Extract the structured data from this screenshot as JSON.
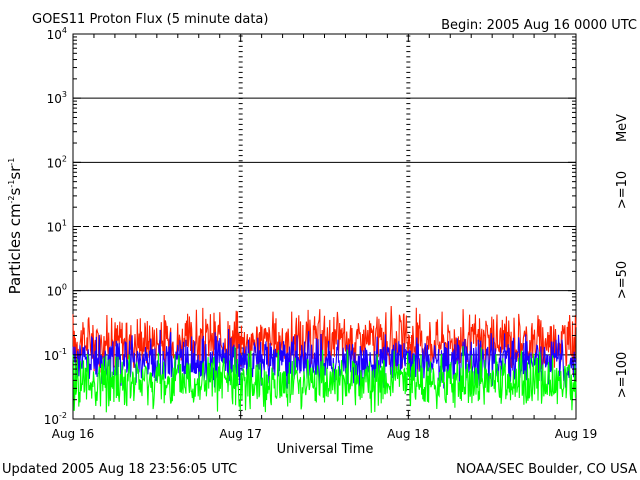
{
  "header": {
    "title": "GOES11 Proton Flux (5 minute data)",
    "begin": "Begin: 2005 Aug 16 0000 UTC"
  },
  "footer": {
    "updated": "Updated 2005 Aug 18 23:56:05 UTC",
    "source": "NOAA/SEC Boulder, CO USA"
  },
  "chart_data": {
    "type": "line",
    "title": "GOES11 Proton Flux (5 minute data)",
    "xlabel": "Universal Time",
    "ylabel_base": "Particles cm",
    "ylabel_rest": "s",
    "ylabel_tail": "sr",
    "ylabel_exp1": "-2",
    "ylabel_exp2": "-1",
    "ylabel_exp3": "-1",
    "yscale": "log",
    "ylim": [
      0.01,
      10000
    ],
    "xlim": [
      0,
      3
    ],
    "x_ticks": [
      {
        "x": 0,
        "label": "Aug 16"
      },
      {
        "x": 1,
        "label": "Aug 17"
      },
      {
        "x": 2,
        "label": "Aug 18"
      },
      {
        "x": 3,
        "label": "Aug 19"
      }
    ],
    "y_ticks": [
      {
        "base": "10",
        "exp": "-2",
        "value": 0.01
      },
      {
        "base": "10",
        "exp": "-1",
        "value": 0.1
      },
      {
        "base": "10",
        "exp": "0",
        "value": 1
      },
      {
        "base": "10",
        "exp": "1",
        "value": 10
      },
      {
        "base": "10",
        "exp": "2",
        "value": 100
      },
      {
        "base": "10",
        "exp": "3",
        "value": 1000
      },
      {
        "base": "10",
        "exp": "4",
        "value": 10000
      }
    ],
    "hlines": [
      {
        "value": 1000,
        "style": "solid"
      },
      {
        "value": 100,
        "style": "solid"
      },
      {
        "value": 10,
        "style": "dashed"
      },
      {
        "value": 1,
        "style": "solid"
      },
      {
        "value": 0.1,
        "style": "solid"
      }
    ],
    "energy_unit": "MeV",
    "series": [
      {
        "name": ">=10",
        "color": "#ff2000",
        "level": 0.15,
        "spread": 0.55
      },
      {
        "name": ">=50",
        "color": "#1a00ff",
        "level": 0.075,
        "spread": 0.5
      },
      {
        "name": ">=100",
        "color": "#00ff00",
        "level": 0.035,
        "spread": 0.55
      }
    ]
  }
}
